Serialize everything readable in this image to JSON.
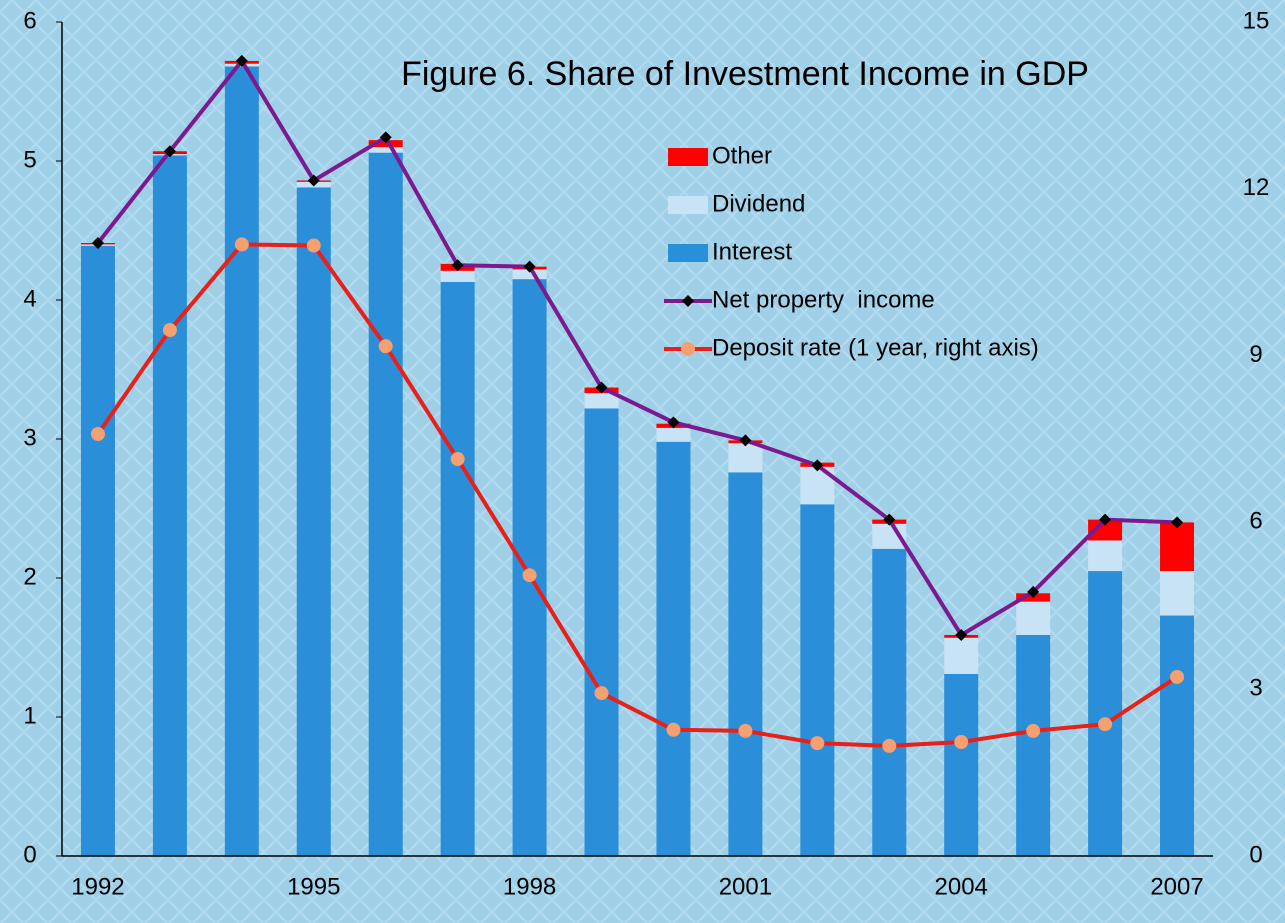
{
  "chart_data": {
    "type": "bar",
    "title": "Figure 6. Share of Investment Income in GDP",
    "categories": [
      "1992",
      null,
      null,
      "1995",
      null,
      null,
      "1998",
      null,
      null,
      "2001",
      null,
      null,
      "2004",
      null,
      null,
      "2007"
    ],
    "series": [
      {
        "name": "Interest",
        "type": "bar",
        "color": "#2a8fd8",
        "values": [
          4.39,
          5.04,
          5.68,
          4.81,
          5.06,
          4.13,
          4.15,
          3.22,
          2.98,
          2.76,
          2.53,
          2.21,
          1.31,
          1.59,
          2.05,
          1.73
        ]
      },
      {
        "name": "Dividend",
        "type": "bar",
        "color": "#c8e2f6",
        "values": [
          0.01,
          0.01,
          0.02,
          0.04,
          0.04,
          0.08,
          0.07,
          0.11,
          0.1,
          0.21,
          0.27,
          0.18,
          0.26,
          0.24,
          0.22,
          0.32
        ]
      },
      {
        "name": "Other",
        "type": "bar",
        "color": "#ff0000",
        "values": [
          0.01,
          0.02,
          0.02,
          0.01,
          0.05,
          0.05,
          0.02,
          0.04,
          0.03,
          0.02,
          0.03,
          0.03,
          0.02,
          0.06,
          0.15,
          0.35
        ]
      },
      {
        "name": "Net property  income",
        "type": "line",
        "color": "#7b1a8e",
        "marker_color": "#000000",
        "values": [
          4.41,
          5.07,
          5.72,
          4.86,
          5.17,
          4.25,
          4.24,
          3.37,
          3.12,
          2.99,
          2.81,
          2.42,
          1.59,
          1.9,
          2.42,
          2.4
        ]
      },
      {
        "name": "Deposit rate (1 year, right axis)",
        "type": "line",
        "axis": "y2",
        "color": "#e8201a",
        "marker_color": "#f4a070",
        "values": [
          7.59,
          9.46,
          11.0,
          10.98,
          9.17,
          7.14,
          5.05,
          2.93,
          2.27,
          2.25,
          2.03,
          1.98,
          2.05,
          2.25,
          2.37,
          3.22
        ]
      }
    ],
    "ylim": [
      0,
      6
    ],
    "yticks": [
      0,
      1,
      2,
      3,
      4,
      5,
      6
    ],
    "y2lim": [
      0,
      15
    ],
    "y2ticks": [
      0,
      3,
      6,
      9,
      12,
      15
    ]
  }
}
